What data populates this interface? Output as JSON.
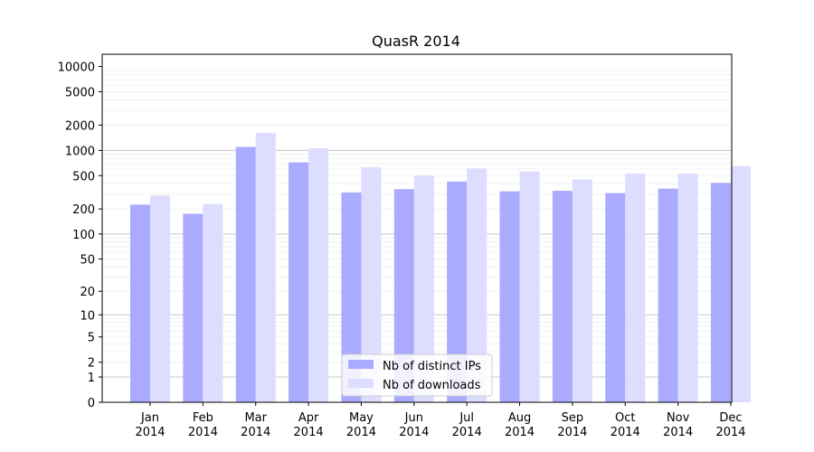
{
  "chart_data": {
    "type": "bar",
    "title": "QuasR 2014",
    "xlabel": "",
    "ylabel": "",
    "y_scale": "log(1+y)",
    "y_ticks": [
      0,
      1,
      2,
      5,
      10,
      20,
      50,
      100,
      200,
      500,
      1000,
      2000,
      5000,
      10000
    ],
    "ylim": [
      0,
      14000
    ],
    "grid": true,
    "legend_position": "lower center",
    "categories": [
      "Jan\n2014",
      "Feb\n2014",
      "Mar\n2014",
      "Apr\n2014",
      "May\n2014",
      "Jun\n2014",
      "Jul\n2014",
      "Aug\n2014",
      "Sep\n2014",
      "Oct\n2014",
      "Nov\n2014",
      "Dec\n2014"
    ],
    "series": [
      {
        "name": "Nb of distinct IPs",
        "color": "#aaaaff",
        "values": [
          225,
          175,
          1100,
          720,
          315,
          345,
          425,
          325,
          330,
          310,
          350,
          410
        ]
      },
      {
        "name": "Nb of downloads",
        "color": "#ddddff",
        "values": [
          290,
          230,
          1620,
          1060,
          630,
          500,
          610,
          560,
          450,
          530,
          530,
          650
        ]
      }
    ]
  }
}
